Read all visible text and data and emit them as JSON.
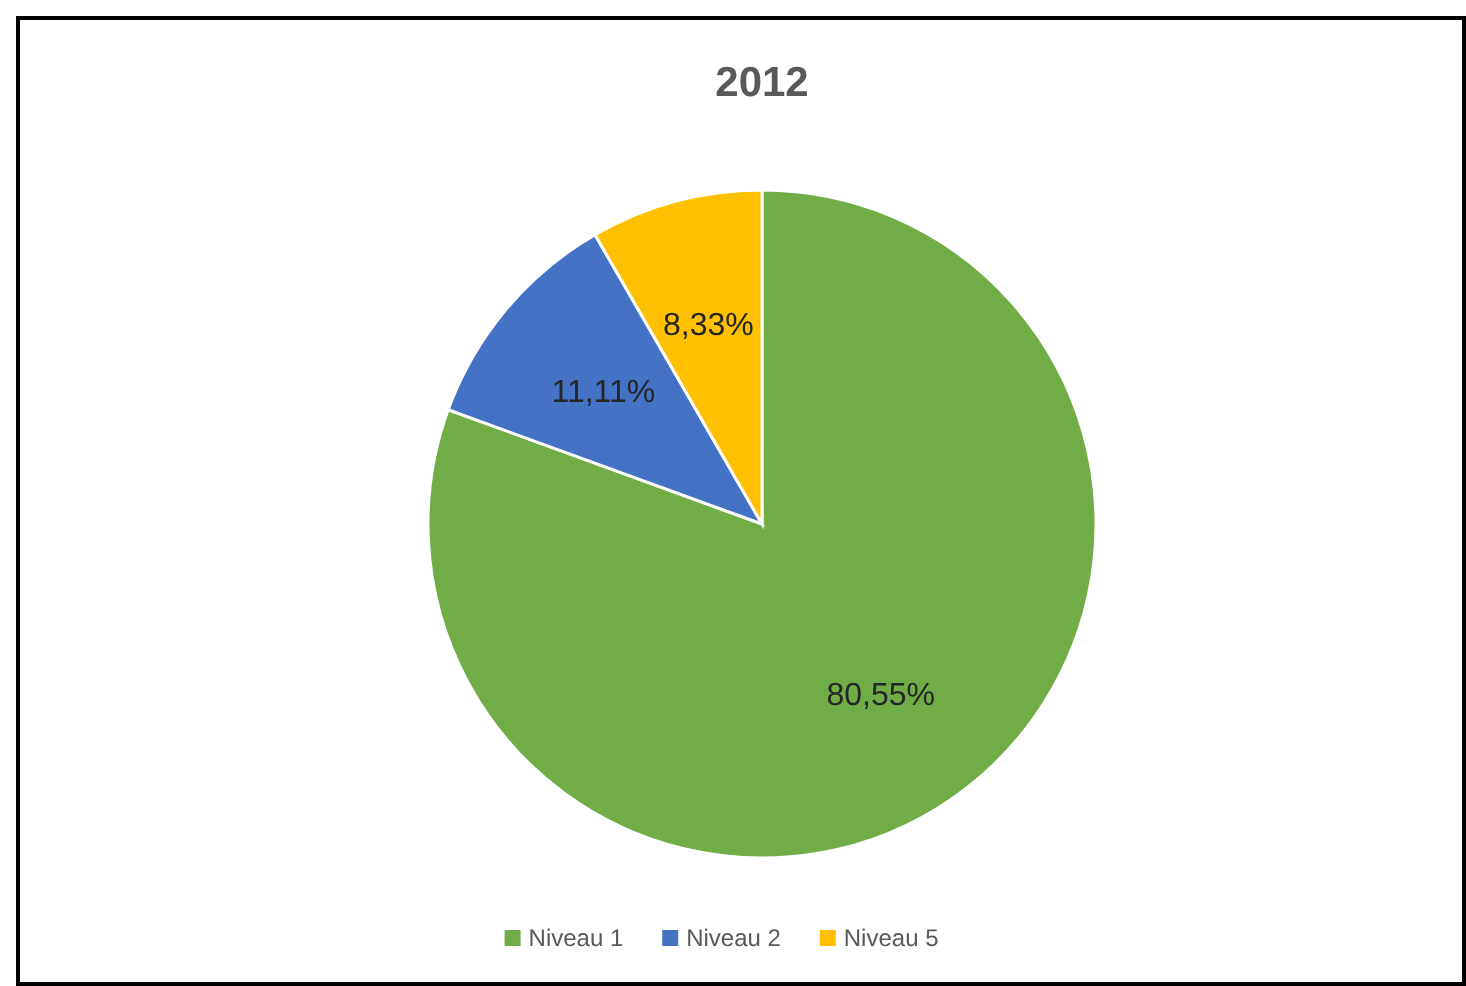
{
  "chart_data": {
    "type": "pie",
    "title": "2012",
    "categories": [
      "Niveau 1",
      "Niveau 2",
      "Niveau 5"
    ],
    "values": [
      80.55,
      11.11,
      8.33
    ],
    "colors": [
      "#70ad47",
      "#4472c4",
      "#ffc000"
    ],
    "value_labels": [
      "80,55%",
      "11,11%",
      "8,33%"
    ],
    "legend": "bottom"
  }
}
